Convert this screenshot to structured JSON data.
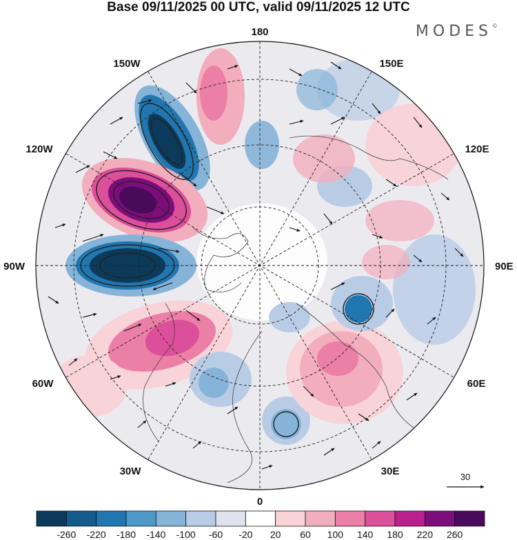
{
  "title": "Base 09/11/2025 00 UTC, valid 09/11/2025 12 UTC",
  "brand": {
    "name": "MODES",
    "mark": "©"
  },
  "longitude_labels": {
    "n": "180",
    "s": "0",
    "e": "90E",
    "w": "90W",
    "ne": "150E",
    "nw": "150W",
    "ene": "120E",
    "wnw": "120W",
    "se": "30E",
    "sw": "30W",
    "ese": "60E",
    "wsw": "60W"
  },
  "vector_scale": {
    "value": "30"
  },
  "colorbar": {
    "labels": [
      "-260",
      "-220",
      "-180",
      "-140",
      "-100",
      "-60",
      "-20",
      "20",
      "60",
      "100",
      "140",
      "180",
      "220",
      "260"
    ],
    "colors": [
      "#0c3a5a",
      "#145a8a",
      "#2176b0",
      "#4e98c9",
      "#86b3d8",
      "#b9cce6",
      "#e1e2ef",
      "#ffffff",
      "#f8d3d8",
      "#f3aebd",
      "#ec7fa5",
      "#dc4f9a",
      "#b91f8d",
      "#7d0d7b",
      "#4a0a5c"
    ]
  },
  "chart_data": {
    "type": "polar-stereographic map",
    "title": "Base 09/11/2025 00 UTC, valid 09/11/2025 12 UTC",
    "projection": "north polar stereographic",
    "fields": [
      "geopotential height anomaly (shaded)",
      "wind vectors"
    ],
    "shading_levels": [
      -260,
      -220,
      -180,
      -140,
      -100,
      -60,
      -20,
      20,
      60,
      100,
      140,
      180,
      220,
      260
    ],
    "vector_reference": 30
  }
}
